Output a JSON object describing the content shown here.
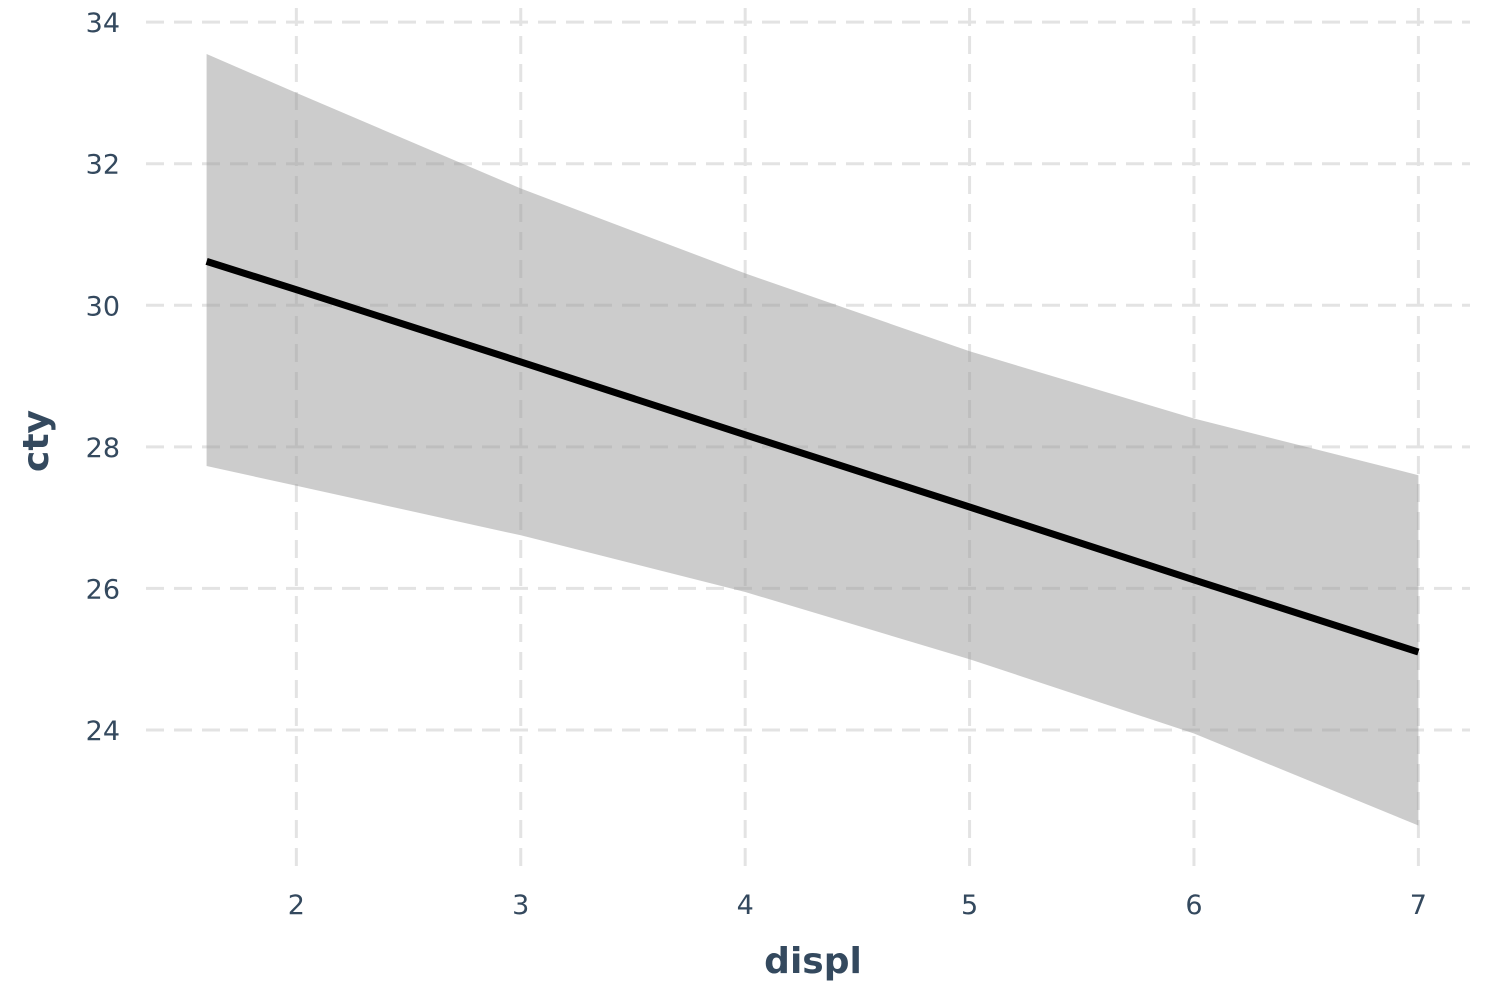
{
  "chart_data": {
    "type": "line",
    "title": "",
    "xlabel": "displ",
    "ylabel": "cty",
    "xlim": [
      1.33,
      7.23
    ],
    "ylim": [
      22.05,
      34.2
    ],
    "x_ticks": [
      2,
      3,
      4,
      5,
      6,
      7
    ],
    "y_ticks": [
      24,
      26,
      28,
      30,
      32,
      34
    ],
    "grid": true,
    "grid_style": "dashed",
    "legend": "none",
    "colors": {
      "line": "#000000",
      "band": "#999999",
      "grid": "#e3e3e3",
      "text": "#34495e"
    },
    "series": [
      {
        "x": [
          1.6,
          2.0,
          3.0,
          4.0,
          5.0,
          6.0,
          7.0
        ],
        "y": [
          30.62,
          30.22,
          29.2,
          28.17,
          27.15,
          26.12,
          25.1
        ],
        "lower": [
          27.73,
          27.45,
          26.75,
          25.95,
          25.0,
          23.95,
          22.65
        ],
        "upper": [
          33.55,
          33.0,
          31.65,
          30.45,
          29.35,
          28.4,
          27.6
        ]
      }
    ]
  }
}
